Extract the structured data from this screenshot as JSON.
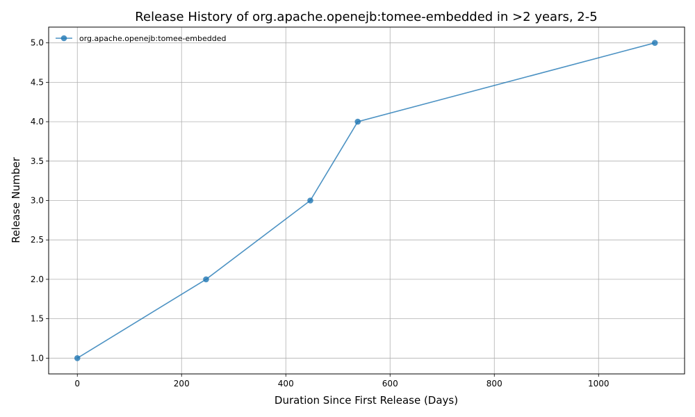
{
  "chart_data": {
    "type": "line",
    "title": "Release History of org.apache.openejb:tomee-embedded in >2 years, 2-5",
    "xlabel": "Duration Since First Release (Days)",
    "ylabel": "Release Number",
    "xlim": [
      -55,
      1165
    ],
    "ylim": [
      0.8,
      5.2
    ],
    "xticks": [
      0,
      200,
      400,
      600,
      800,
      1000
    ],
    "yticks": [
      1.0,
      1.5,
      2.0,
      2.5,
      3.0,
      3.5,
      4.0,
      4.5,
      5.0
    ],
    "xtick_labels": [
      "0",
      "200",
      "400",
      "600",
      "800",
      "1000"
    ],
    "ytick_labels": [
      "1.0",
      "1.5",
      "2.0",
      "2.5",
      "3.0",
      "3.5",
      "4.0",
      "4.5",
      "5.0"
    ],
    "grid": true,
    "legend_position": "top-left",
    "series": [
      {
        "name": "org.apache.openejb:tomee-embedded",
        "color": "#1f77b4",
        "marker": "circle",
        "x": [
          0,
          247,
          447,
          538,
          1108
        ],
        "y": [
          1,
          2,
          3,
          4,
          5
        ]
      }
    ]
  }
}
